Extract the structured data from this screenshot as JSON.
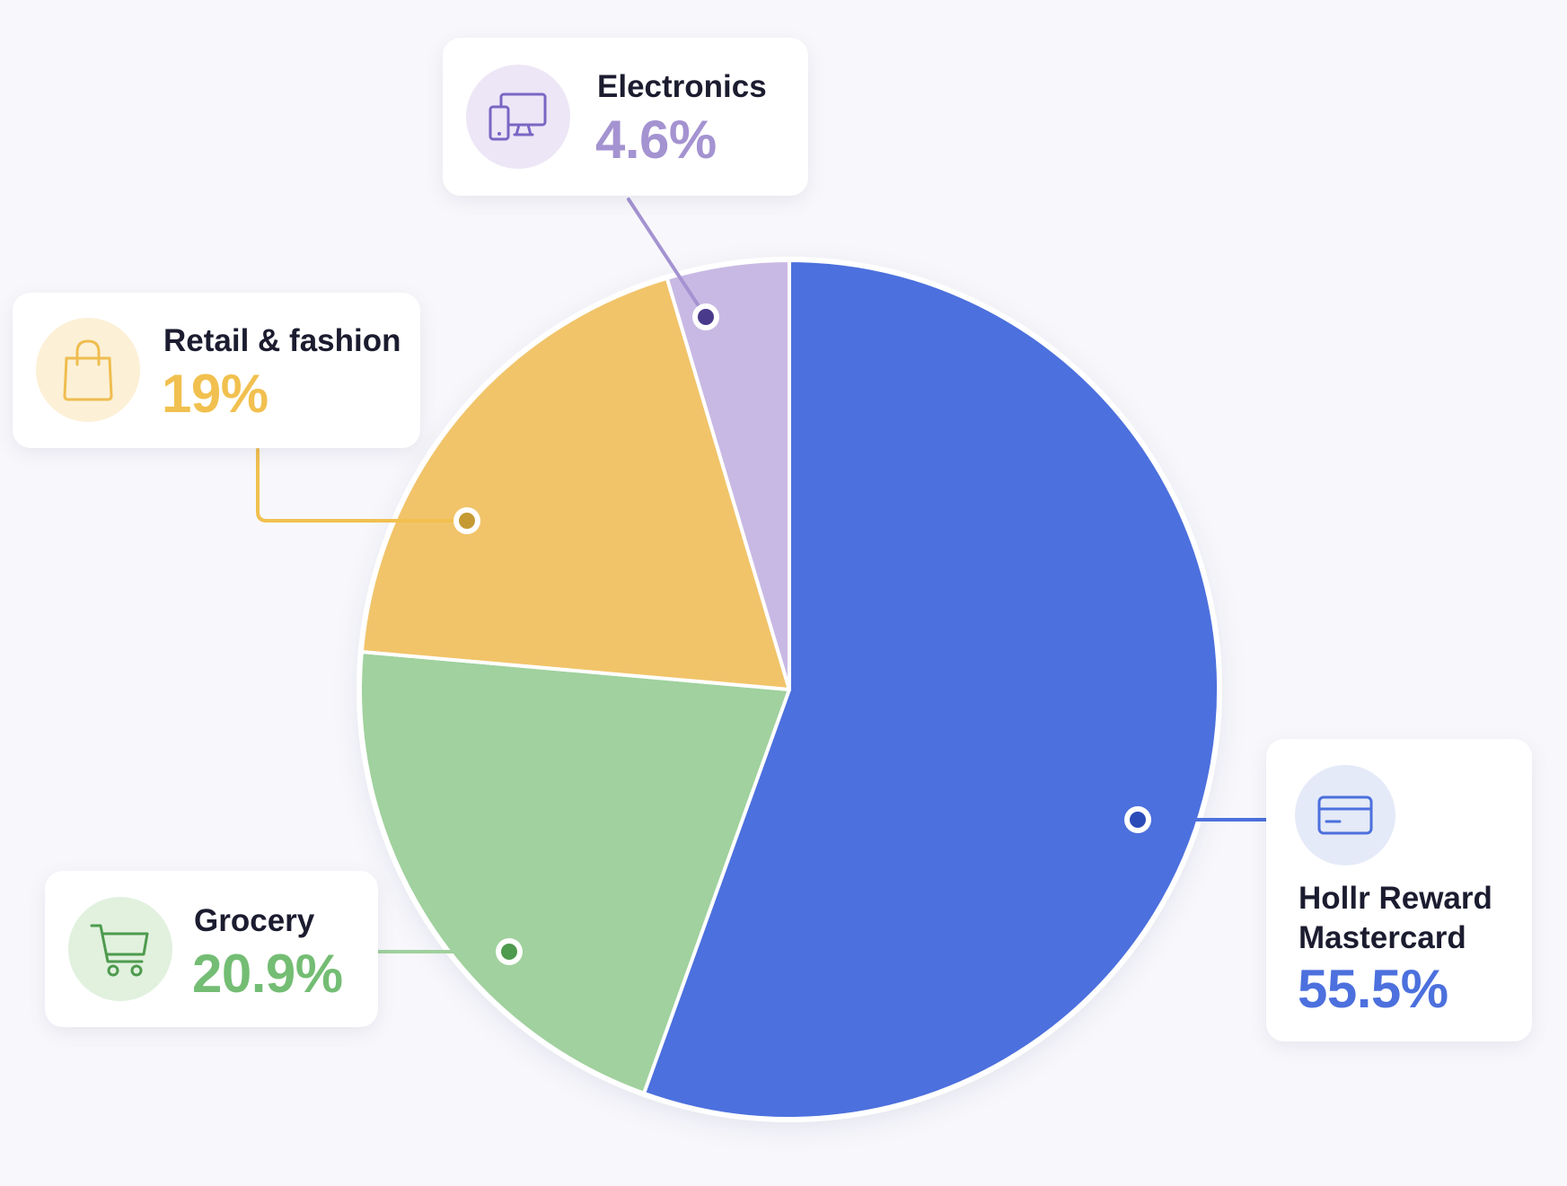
{
  "chart_data": {
    "type": "pie",
    "categories": [
      "Hollr Reward Mastercard",
      "Grocery",
      "Retail & fashion",
      "Electronics"
    ],
    "values": [
      55.5,
      20.9,
      19,
      4.6
    ],
    "colors": [
      "#4c70dd",
      "#a0d19e",
      "#f1c46a",
      "#c8b9e4"
    ],
    "value_labels": [
      "55.5%",
      "20.9%",
      "19%",
      "4.6%"
    ],
    "label_colors": [
      "#4c70dd",
      "#74bd74",
      "#f1c04f",
      "#a493d1"
    ],
    "icons": [
      "credit-card-icon",
      "shopping-cart-icon",
      "shopping-bag-icon",
      "devices-icon"
    ]
  },
  "callouts": {
    "electronics": {
      "label": "Electronics",
      "value": "4.6%",
      "icon": "devices-icon"
    },
    "retail": {
      "label": "Retail & fashion",
      "value": "19%",
      "icon": "shopping-bag-icon"
    },
    "grocery": {
      "label": "Grocery",
      "value": "20.9%",
      "icon": "shopping-cart-icon"
    },
    "hollr": {
      "label_line1": "Hollr Reward",
      "label_line2": "Mastercard",
      "value": "55.5%",
      "icon": "credit-card-icon"
    }
  }
}
